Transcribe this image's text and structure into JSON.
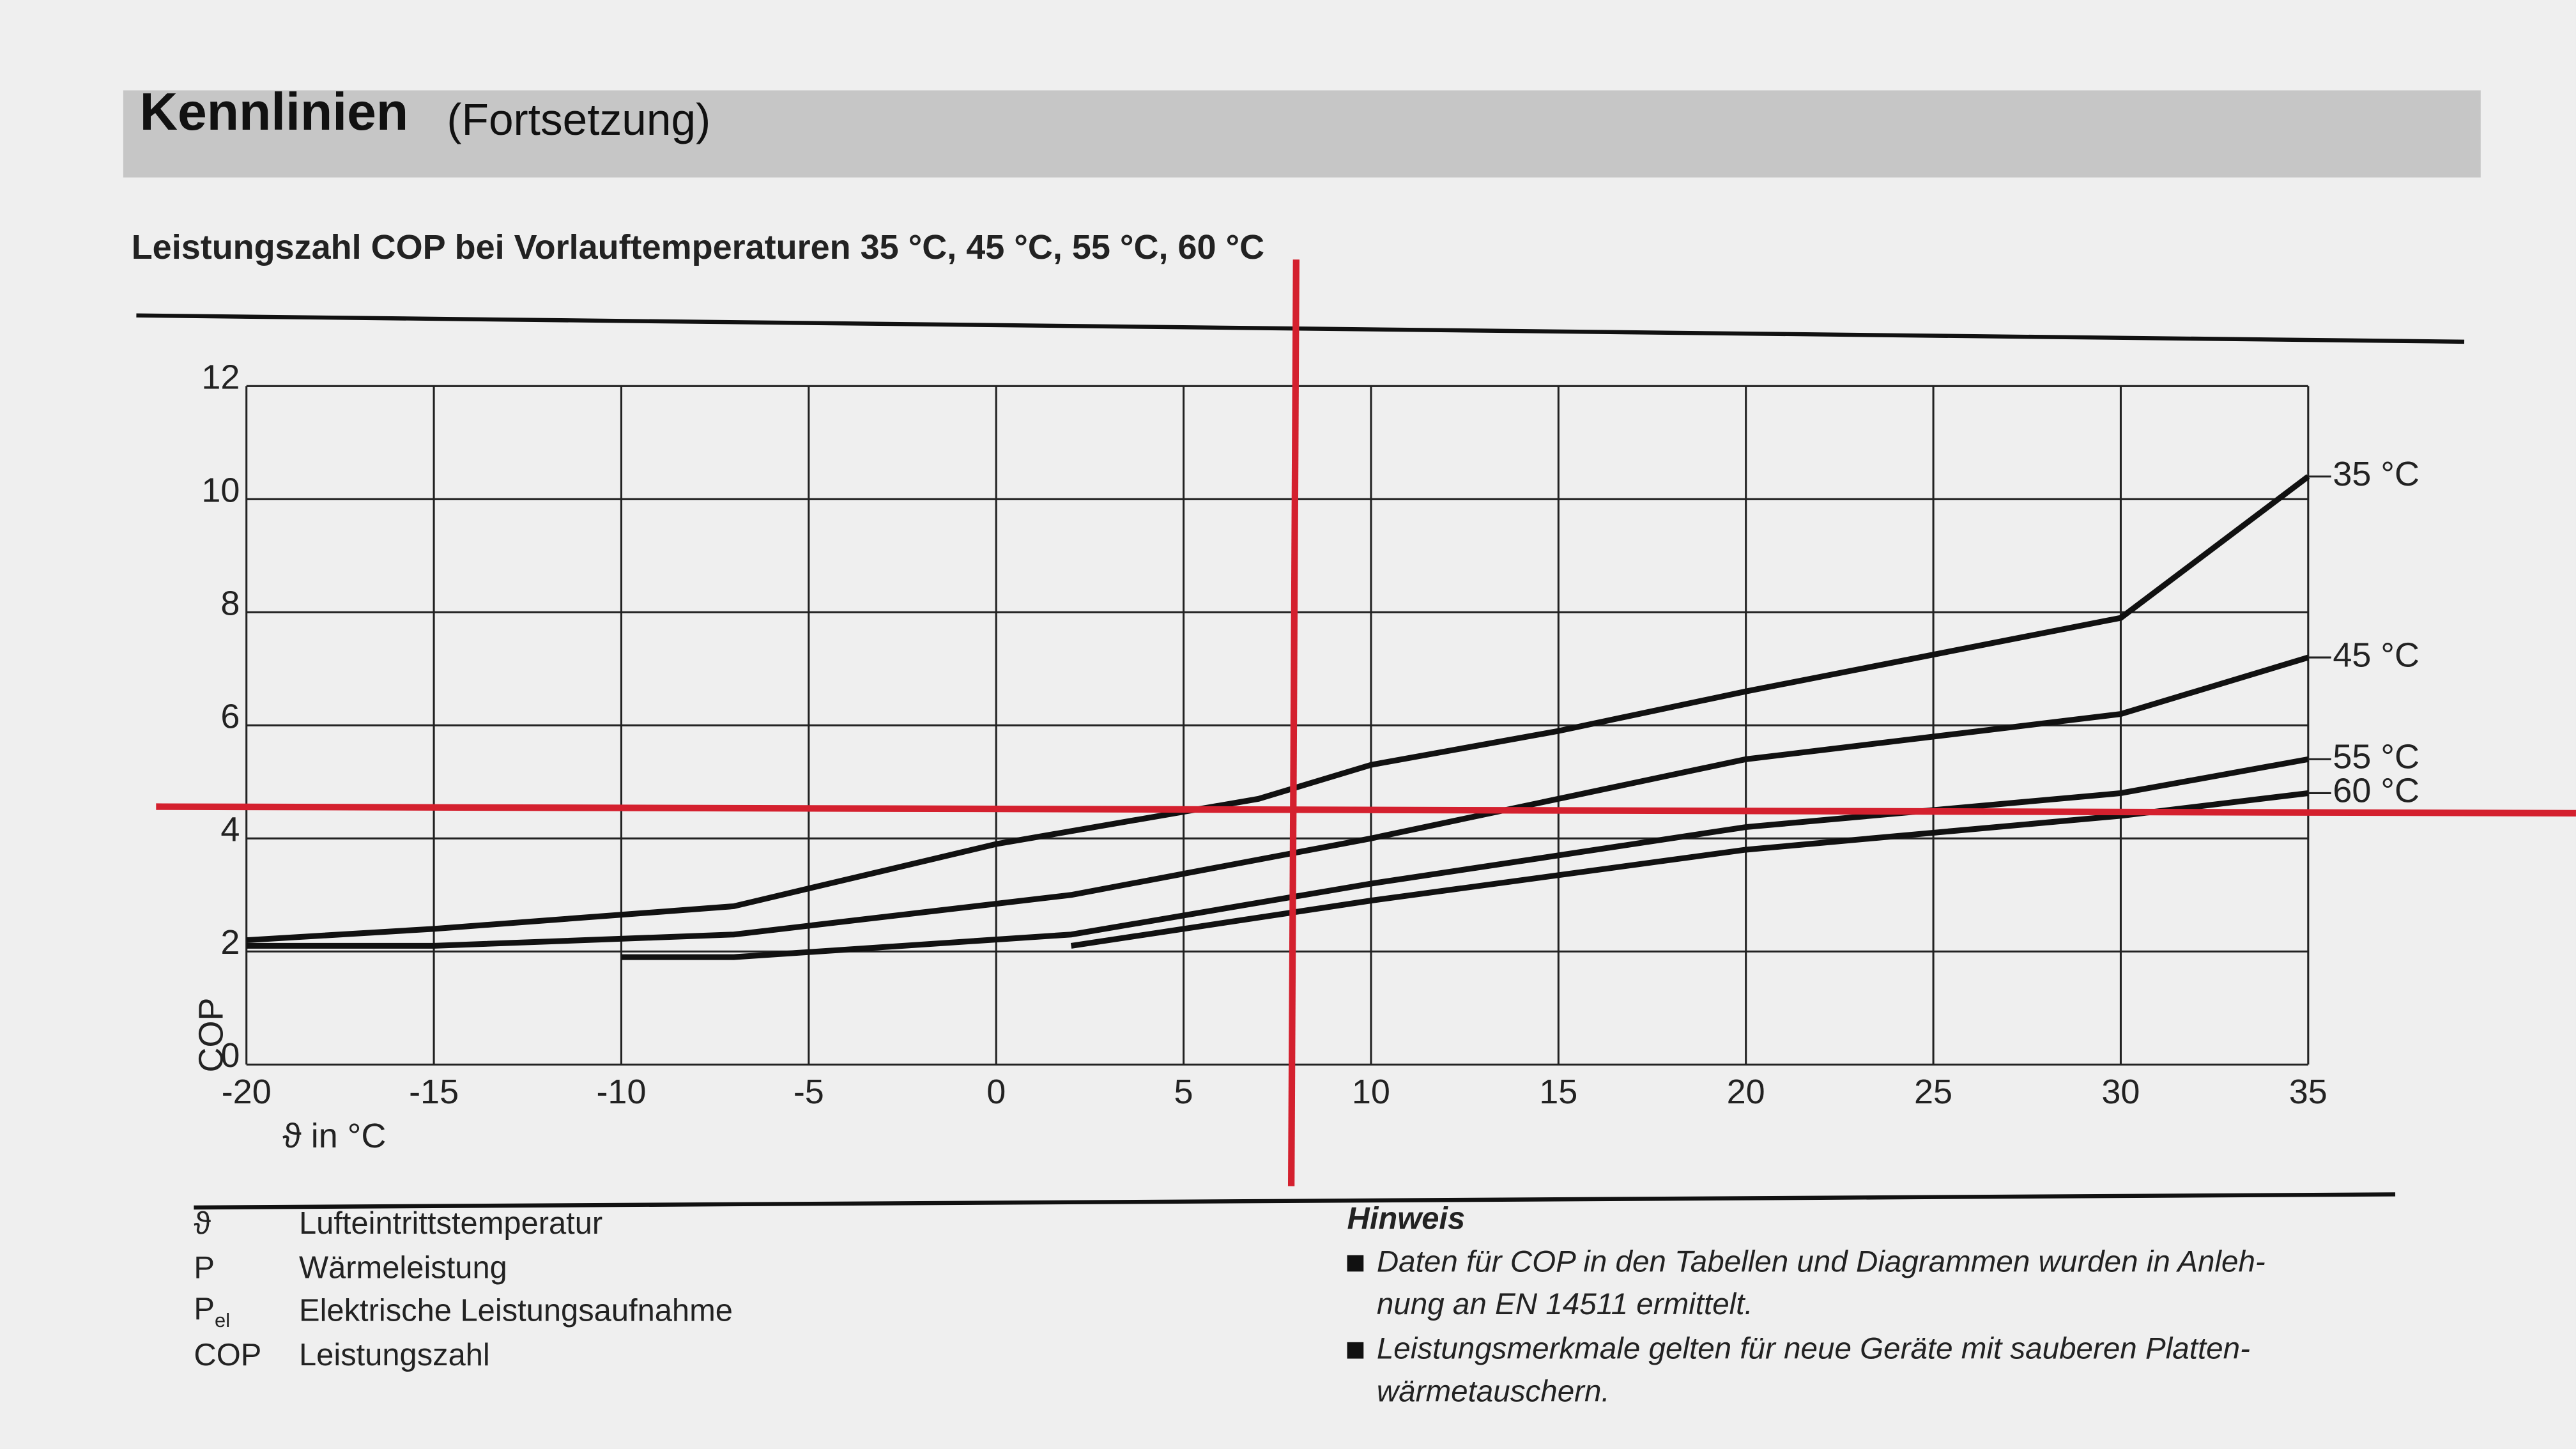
{
  "header": {
    "title": "Kennlinien",
    "subtitle": "(Fortsetzung)"
  },
  "chart_data": {
    "type": "line",
    "title": "Leistungszahl COP bei Vorlauftemperaturen 35 °C, 45 °C, 55 °C, 60 °C",
    "x_label": "ϑ in °C",
    "y_label": "COP",
    "xlim": [
      -20,
      35
    ],
    "xticks": [
      -20,
      -15,
      -10,
      -5,
      0,
      5,
      10,
      15,
      20,
      25,
      30,
      35
    ],
    "ylim": [
      0,
      12
    ],
    "yticks": [
      0,
      2,
      4,
      6,
      8,
      10,
      12
    ],
    "grid": true,
    "series": [
      {
        "name": "35 °C",
        "color": "#111111",
        "x": [
          -20,
          -15,
          -10,
          -7,
          0,
          7,
          10,
          15,
          20,
          30,
          35
        ],
        "values": [
          2.2,
          2.4,
          2.65,
          2.8,
          3.9,
          4.7,
          5.3,
          5.9,
          6.6,
          7.9,
          10.4
        ]
      },
      {
        "name": "45 °C",
        "color": "#111111",
        "x": [
          -20,
          -15,
          -7,
          2,
          10,
          20,
          30,
          35
        ],
        "values": [
          2.1,
          2.1,
          2.3,
          3.0,
          4.0,
          5.4,
          6.2,
          7.2
        ]
      },
      {
        "name": "55 °C",
        "color": "#111111",
        "x": [
          -10,
          -7,
          2,
          10,
          20,
          30,
          35
        ],
        "values": [
          1.9,
          1.9,
          2.3,
          3.2,
          4.2,
          4.8,
          5.4
        ]
      },
      {
        "name": "60 °C",
        "color": "#111111",
        "x": [
          2,
          10,
          20,
          30,
          35
        ],
        "values": [
          2.1,
          2.9,
          3.8,
          4.4,
          4.8
        ]
      }
    ]
  },
  "legend_table": {
    "rows": [
      {
        "symbol": "ϑ",
        "text": "Lufteintrittstemperatur"
      },
      {
        "symbol": "P",
        "text": "Wärmeleistung"
      },
      {
        "symbol": "P",
        "subscript": "el",
        "text": "Elektrische Leistungsaufnahme"
      },
      {
        "symbol": "COP",
        "text": "Leistungszahl"
      }
    ]
  },
  "hinweis": {
    "title": "Hinweis",
    "items": [
      "Daten für COP in den Tabellen und Diagrammen wurden in Anleh-\nnung an EN 14511 ermittelt.",
      "Leistungsmerkmale gelten für neue Geräte mit sauberen Platten-\nwärmetauschern."
    ]
  }
}
